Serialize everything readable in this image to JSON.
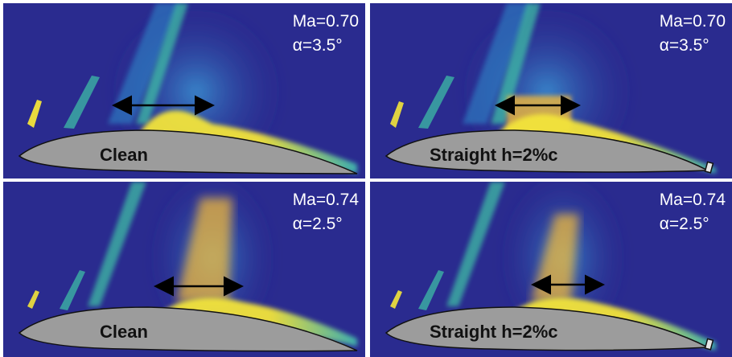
{
  "panels": [
    {
      "mach": "Ma=0.70",
      "alpha": "α=3.5°",
      "label": "Clean",
      "variant": "clean"
    },
    {
      "mach": "Ma=0.70",
      "alpha": "α=3.5°",
      "label": "Straight h=2%c",
      "variant": "straight"
    },
    {
      "mach": "Ma=0.74",
      "alpha": "α=2.5°",
      "label": "Clean",
      "variant": "clean"
    },
    {
      "mach": "Ma=0.74",
      "alpha": "α=2.5°",
      "label": "Straight h=2%c",
      "variant": "straight"
    }
  ],
  "colors": {
    "background": "#2a2b8f",
    "field_mid": "#2f86c8",
    "field_high": "#3fc6a6",
    "shock_core": "#f3e43a",
    "airfoil_fill": "#9c9c9c",
    "arrow": "#000000",
    "text": "#ffffff"
  }
}
